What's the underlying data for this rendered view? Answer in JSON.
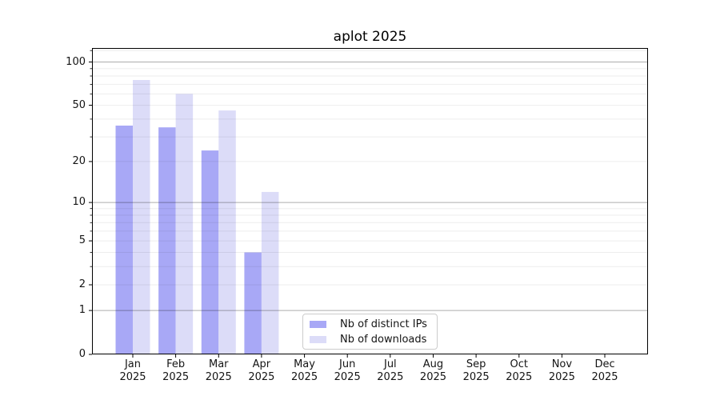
{
  "chart_data": {
    "type": "bar",
    "title": "aplot 2025",
    "categories": [
      "Jan",
      "Feb",
      "Mar",
      "Apr",
      "May",
      "Jun",
      "Jul",
      "Aug",
      "Sep",
      "Oct",
      "Nov",
      "Dec"
    ],
    "year_line": "2025",
    "series": [
      {
        "name": "Nb of distinct IPs",
        "color": "#a8a8f6",
        "values": [
          36,
          35,
          24,
          4,
          0,
          0,
          0,
          0,
          0,
          0,
          0,
          0
        ]
      },
      {
        "name": "Nb of downloads",
        "color": "#dcdcf8",
        "values": [
          75,
          60,
          46,
          12,
          0,
          0,
          0,
          0,
          0,
          0,
          0,
          0
        ]
      }
    ],
    "y_axis": {
      "scale": "log10(1+y)",
      "ylim": [
        0,
        125
      ],
      "ticks": [
        0,
        1,
        2,
        5,
        10,
        20,
        50,
        100
      ],
      "major_gridlines": [
        1,
        10,
        100
      ],
      "minor_gridlines": [
        2,
        3,
        4,
        5,
        6,
        7,
        8,
        9,
        20,
        30,
        40,
        50,
        60,
        70,
        80,
        90,
        120
      ]
    },
    "x_axis": {
      "label_line2": "2025"
    },
    "legend": {
      "position": "lower center-right"
    },
    "colors": {
      "spine": "#000000",
      "major_grid": "rgba(0,0,0,0.32)",
      "minor_grid": "rgba(0,0,0,0.07)",
      "text": "#141414",
      "background": "#ffffff"
    }
  }
}
